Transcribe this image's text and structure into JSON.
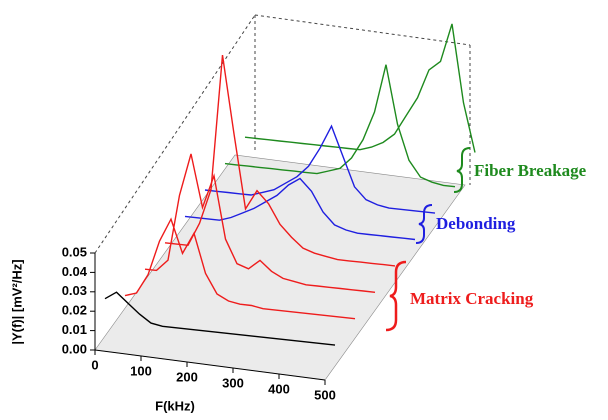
{
  "chart_data": {
    "type": "waterfall",
    "ylabel": "|Y(f)| [mV²/Hz]",
    "xlabel": "F(kHz)",
    "x": [
      0,
      25,
      50,
      75,
      100,
      125,
      150,
      175,
      200,
      225,
      250,
      275,
      300,
      325,
      350,
      375,
      400,
      425,
      450,
      475,
      500
    ],
    "xlim": [
      0,
      500
    ],
    "xticks": [
      0,
      100,
      200,
      300,
      400,
      500
    ],
    "ylim": [
      0,
      0.05
    ],
    "yticks": [
      {
        "value": 0,
        "label": "0.00"
      },
      {
        "value": 0.01,
        "label": "0.01"
      },
      {
        "value": 0.02,
        "label": "0.02"
      },
      {
        "value": 0.03,
        "label": "0.03"
      },
      {
        "value": 0.04,
        "label": "0.04"
      },
      {
        "value": 0.05,
        "label": "0.05"
      }
    ],
    "series": [
      {
        "color": "#000000",
        "values": [
          0.012,
          0.016,
          0.011,
          0.006,
          0.002,
          0.001,
          0.001,
          0.001,
          0.001,
          0.001,
          0.001,
          0.001,
          0.001,
          0.001,
          0.001,
          0.001,
          0.001,
          0.001,
          0.001,
          0.001,
          0.001
        ]
      },
      {
        "color": "#ee1c1c",
        "values": [
          0,
          0.002,
          0.012,
          0.03,
          0.042,
          0.025,
          0.036,
          0.016,
          0.006,
          0.003,
          0.002,
          0.002,
          0.001,
          0.001,
          0.001,
          0.001,
          0.001,
          0.001,
          0.001,
          0.001,
          0.001
        ]
      },
      {
        "color": "#ee1c1c",
        "values": [
          0,
          0,
          0.006,
          0.04,
          0.062,
          0.035,
          0.052,
          0.02,
          0.008,
          0.006,
          0.011,
          0.006,
          0.003,
          0.002,
          0.001,
          0.001,
          0.001,
          0.001,
          0.001,
          0.001,
          0.001
        ]
      },
      {
        "color": "#ee1c1c",
        "values": [
          0,
          0,
          0,
          0.012,
          0.03,
          0.1,
          0.06,
          0.022,
          0.032,
          0.026,
          0.016,
          0.01,
          0.005,
          0.003,
          0.002,
          0.001,
          0.001,
          0.001,
          0.001,
          0.001,
          0.001
        ]
      },
      {
        "color": "#1f1fe0",
        "values": [
          0,
          0,
          0,
          0,
          0.002,
          0.005,
          0.008,
          0.012,
          0.016,
          0.022,
          0.026,
          0.02,
          0.01,
          0.004,
          0.002,
          0.001,
          0.001,
          0.001,
          0.001,
          0.001,
          0.001
        ]
      },
      {
        "color": "#1f1fe0",
        "values": [
          0,
          0,
          0,
          0,
          0,
          0.002,
          0.004,
          0.008,
          0.012,
          0.018,
          0.028,
          0.04,
          0.025,
          0.01,
          0.004,
          0.002,
          0.001,
          0.001,
          0.001,
          0.001,
          0.001
        ]
      },
      {
        "color": "#1e8a1e",
        "values": [
          0,
          0,
          0,
          0,
          0,
          0,
          0,
          0,
          0,
          0.002,
          0.004,
          0.01,
          0.02,
          0.035,
          0.06,
          0.03,
          0.012,
          0.004,
          0.002,
          0.001,
          0.001
        ]
      },
      {
        "color": "#1e8a1e",
        "values": [
          0,
          0,
          0,
          0,
          0,
          0,
          0,
          0,
          0,
          0,
          0,
          0.002,
          0.005,
          0.01,
          0.02,
          0.03,
          0.045,
          0.05,
          0.07,
          0.03,
          0.005
        ]
      }
    ],
    "annotations": [
      {
        "text": "Fiber Breakage",
        "color": "#1e8a1e"
      },
      {
        "text": "Debonding",
        "color": "#1f1fe0"
      },
      {
        "text": "Matrix Cracking",
        "color": "#ee1c1c"
      }
    ]
  }
}
